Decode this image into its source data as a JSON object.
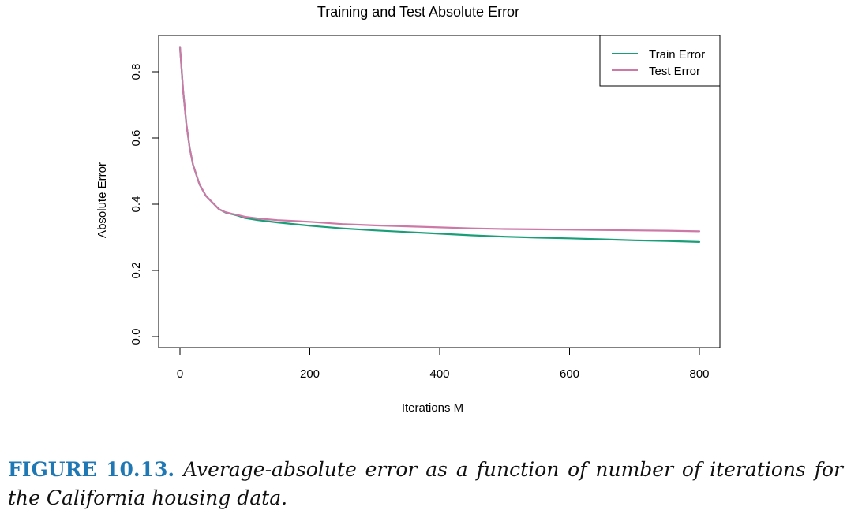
{
  "chart_data": {
    "type": "line",
    "title": "Training and Test Absolute Error",
    "xlabel": "Iterations M",
    "ylabel": "Absolute Error",
    "xlim": [
      0,
      800
    ],
    "ylim": [
      0,
      0.88
    ],
    "x_ticks": [
      "0",
      "200",
      "400",
      "600",
      "800"
    ],
    "y_ticks": [
      "0.0",
      "0.2",
      "0.4",
      "0.6",
      "0.8"
    ],
    "grid": false,
    "legend_position": "top-right",
    "series": [
      {
        "name": "Train Error",
        "color": "#1a9e77",
        "x": [
          0,
          5,
          10,
          15,
          20,
          30,
          40,
          50,
          60,
          70,
          80,
          90,
          100,
          120,
          150,
          200,
          250,
          300,
          350,
          400,
          450,
          500,
          550,
          600,
          650,
          700,
          750,
          800
        ],
        "y": [
          0.875,
          0.74,
          0.64,
          0.57,
          0.52,
          0.46,
          0.425,
          0.405,
          0.385,
          0.375,
          0.37,
          0.365,
          0.358,
          0.352,
          0.345,
          0.335,
          0.327,
          0.321,
          0.316,
          0.311,
          0.306,
          0.302,
          0.299,
          0.297,
          0.294,
          0.291,
          0.289,
          0.286
        ]
      },
      {
        "name": "Test Error",
        "color": "#cc79a7",
        "x": [
          0,
          5,
          10,
          15,
          20,
          30,
          40,
          50,
          60,
          70,
          80,
          90,
          100,
          120,
          150,
          200,
          250,
          300,
          350,
          400,
          450,
          500,
          550,
          600,
          650,
          700,
          750,
          800
        ],
        "y": [
          0.875,
          0.74,
          0.64,
          0.57,
          0.52,
          0.46,
          0.425,
          0.405,
          0.385,
          0.376,
          0.371,
          0.367,
          0.362,
          0.357,
          0.352,
          0.347,
          0.34,
          0.336,
          0.333,
          0.33,
          0.327,
          0.325,
          0.324,
          0.323,
          0.322,
          0.321,
          0.32,
          0.318
        ]
      }
    ]
  },
  "caption": {
    "label": "FIGURE 10.13.",
    "text": "Average-absolute error as a function of number of iterations for the California housing data."
  }
}
